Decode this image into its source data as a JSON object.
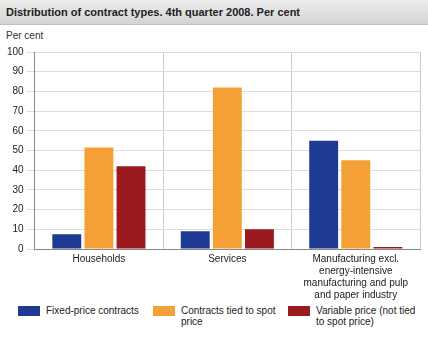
{
  "chart_data": {
    "type": "bar",
    "title": "Distribution of contract types. 4th quarter 2008. Per cent",
    "y_label": "Per cent",
    "categories": [
      "Households",
      "Services",
      "Manufacturing excl. energy-intensive manufacturing and pulp and paper industry"
    ],
    "series": [
      {
        "name": "Fixed-price contracts",
        "color": "#1f3a93",
        "values": [
          7.5,
          9,
          55
        ]
      },
      {
        "name": "Contracts tied to spot price",
        "color": "#f5a037",
        "values": [
          51.5,
          82,
          45
        ]
      },
      {
        "name": "Variable price (not tied to spot price)",
        "color": "#9b1a1f",
        "values": [
          42,
          10,
          1
        ]
      }
    ],
    "ylim": [
      0,
      100
    ],
    "yticks": [
      0,
      10,
      20,
      30,
      40,
      50,
      60,
      70,
      80,
      90,
      100
    ],
    "grid": true,
    "legend": "bottom"
  }
}
